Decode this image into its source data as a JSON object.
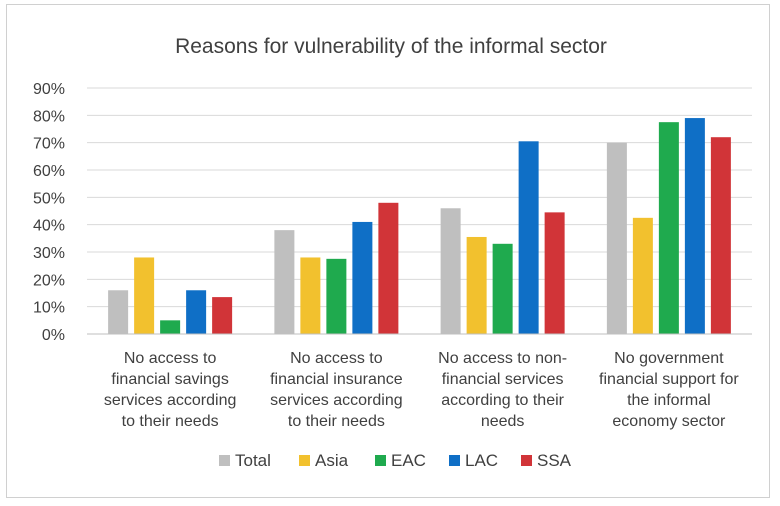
{
  "chart_data": {
    "type": "bar",
    "title": "Reasons for vulnerability of the informal sector",
    "xlabel": "",
    "ylabel": "",
    "ylim": [
      0,
      0.9
    ],
    "yticks": [
      "0%",
      "10%",
      "20%",
      "30%",
      "40%",
      "50%",
      "60%",
      "70%",
      "80%",
      "90%"
    ],
    "grid": true,
    "legend_position": "bottom",
    "categories": [
      [
        "No access to",
        "financial savings",
        "services according",
        "to their needs"
      ],
      [
        "No access to",
        "financial insurance",
        "services according",
        "to their needs"
      ],
      [
        "No access to non-",
        "financial services",
        "according to their",
        "needs"
      ],
      [
        "No government",
        "financial support for",
        "the informal",
        "economy sector"
      ]
    ],
    "series": [
      {
        "name": "Total",
        "color": "#bfbfbf",
        "values": [
          0.16,
          0.38,
          0.46,
          0.7
        ]
      },
      {
        "name": "Asia",
        "color": "#f2c12e",
        "values": [
          0.28,
          0.28,
          0.355,
          0.425
        ]
      },
      {
        "name": "EAC",
        "color": "#1faa4e",
        "values": [
          0.05,
          0.275,
          0.33,
          0.775
        ]
      },
      {
        "name": "LAC",
        "color": "#0f6fc6",
        "values": [
          0.16,
          0.41,
          0.705,
          0.79
        ]
      },
      {
        "name": "SSA",
        "color": "#d13438",
        "values": [
          0.135,
          0.48,
          0.445,
          0.72
        ]
      }
    ]
  }
}
